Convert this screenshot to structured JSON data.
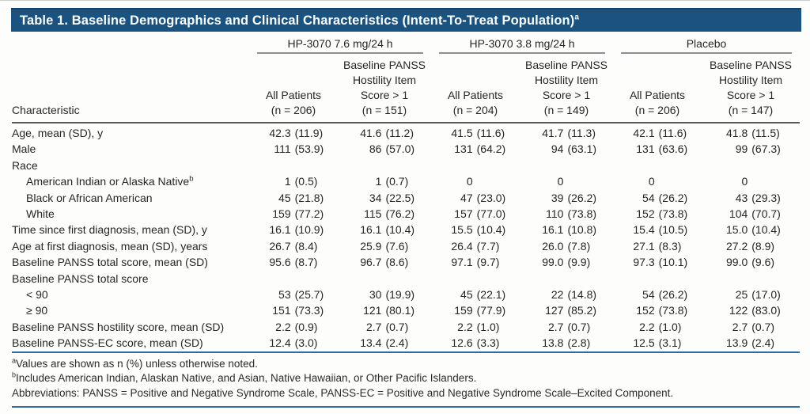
{
  "title": "Table 1. Baseline Demographics and Clinical Characteristics (Intent-To-Treat Population)",
  "title_sup": "a",
  "characteristic_header": "Characteristic",
  "groups": [
    {
      "label": "HP-3070 7.6 mg/24 h",
      "columns": [
        {
          "lines": [
            "All Patients",
            "(n = 206)"
          ]
        },
        {
          "lines": [
            "Baseline PANSS",
            "Hostility Item",
            "Score > 1",
            "(n = 151)"
          ]
        }
      ]
    },
    {
      "label": "HP-3070 3.8 mg/24 h",
      "columns": [
        {
          "lines": [
            "All Patients",
            "(n = 204)"
          ]
        },
        {
          "lines": [
            "Baseline PANSS",
            "Hostility Item",
            "Score > 1",
            "(n = 149)"
          ]
        }
      ]
    },
    {
      "label": "Placebo",
      "columns": [
        {
          "lines": [
            "All Patients",
            "(n = 206)"
          ]
        },
        {
          "lines": [
            "Baseline PANSS",
            "Hostility Item",
            "Score > 1",
            "(n = 147)"
          ]
        }
      ]
    }
  ],
  "rows": [
    {
      "label": "Age, mean (SD), y",
      "indent": 0,
      "sup": "",
      "values": [
        "42.3 (11.9)",
        "41.6 (11.2)",
        "41.5 (11.6)",
        "41.7 (11.3)",
        "42.1 (11.6)",
        "41.8 (11.5)"
      ]
    },
    {
      "label": "Male",
      "indent": 0,
      "sup": "",
      "values": [
        "111 (53.9)",
        "86 (57.0)",
        "131 (64.2)",
        "94 (63.1)",
        "131 (63.6)",
        "99 (67.3)"
      ]
    },
    {
      "label": "Race",
      "indent": 0,
      "sup": "",
      "values": [
        "",
        "",
        "",
        "",
        "",
        ""
      ]
    },
    {
      "label": "American Indian or Alaska Native",
      "indent": 1,
      "sup": "b",
      "values": [
        "1 (0.5)",
        "1 (0.7)",
        "0",
        "0",
        "0",
        "0"
      ]
    },
    {
      "label": "Black or African American",
      "indent": 1,
      "sup": "",
      "values": [
        "45 (21.8)",
        "34 (22.5)",
        "47 (23.0)",
        "39 (26.2)",
        "54 (26.2)",
        "43 (29.3)"
      ]
    },
    {
      "label": "White",
      "indent": 1,
      "sup": "",
      "values": [
        "159 (77.2)",
        "115 (76.2)",
        "157 (77.0)",
        "110 (73.8)",
        "152 (73.8)",
        "104 (70.7)"
      ]
    },
    {
      "label": "Time since first diagnosis, mean (SD), y",
      "indent": 0,
      "sup": "",
      "values": [
        "16.1 (10.9)",
        "16.1 (10.4)",
        "15.5 (10.4)",
        "16.1 (10.8)",
        "15.4 (10.5)",
        "15.0 (10.4)"
      ]
    },
    {
      "label": "Age at first diagnosis, mean (SD), years",
      "indent": 0,
      "sup": "",
      "values": [
        "26.7 (8.4)",
        "25.9 (7.6)",
        "26.4 (7.7)",
        "26.0 (7.8)",
        "27.1 (8.3)",
        "27.2 (8.9)"
      ]
    },
    {
      "label": "Baseline PANSS total score, mean (SD)",
      "indent": 0,
      "sup": "",
      "values": [
        "95.6 (8.7)",
        "96.7 (8.6)",
        "97.1 (9.7)",
        "99.0 (9.9)",
        "97.3 (10.1)",
        "99.0 (9.6)"
      ]
    },
    {
      "label": "Baseline PANSS total score",
      "indent": 0,
      "sup": "",
      "values": [
        "",
        "",
        "",
        "",
        "",
        ""
      ]
    },
    {
      "label": "< 90",
      "indent": 1,
      "sup": "",
      "values": [
        "53 (25.7)",
        "30 (19.9)",
        "45 (22.1)",
        "22 (14.8)",
        "54 (26.2)",
        "25 (17.0)"
      ]
    },
    {
      "label": "≥ 90",
      "indent": 1,
      "sup": "",
      "values": [
        "151 (73.3)",
        "121 (80.1)",
        "159 (77.9)",
        "127 (85.2)",
        "152 (73.8)",
        "122 (83.0)"
      ]
    },
    {
      "label": "Baseline PANSS hostility score, mean (SD)",
      "indent": 0,
      "sup": "",
      "values": [
        "2.2 (0.9)",
        "2.7 (0.7)",
        "2.2 (1.0)",
        "2.7 (0.7)",
        "2.2 (1.0)",
        "2.7 (0.7)"
      ]
    },
    {
      "label": "Baseline PANSS-EC score, mean (SD)",
      "indent": 0,
      "sup": "",
      "values": [
        "12.4 (3.0)",
        "13.4 (2.4)",
        "12.6 (3.3)",
        "13.8 (2.8)",
        "12.5 (3.1)",
        "13.9 (2.4)"
      ]
    }
  ],
  "footnotes": [
    {
      "sup": "a",
      "text": "Values are shown as n (%) unless otherwise noted."
    },
    {
      "sup": "b",
      "text": "Includes American Indian, Alaskan Native, and Asian, Native Hawaiian, or Other Pacific Islanders."
    },
    {
      "sup": "",
      "text": "Abbreviations: PANSS = Positive and Negative Syndrome Scale, PANSS-EC = Positive and Negative Syndrome Scale–Excited Component."
    }
  ],
  "colors": {
    "banner_bg": "#1a5280",
    "banner_edge": "#12466f",
    "rule_blue": "#2e6da3",
    "rule_gray": "#8d8f92",
    "rule_dark": "#58595b",
    "text": "#262626"
  }
}
